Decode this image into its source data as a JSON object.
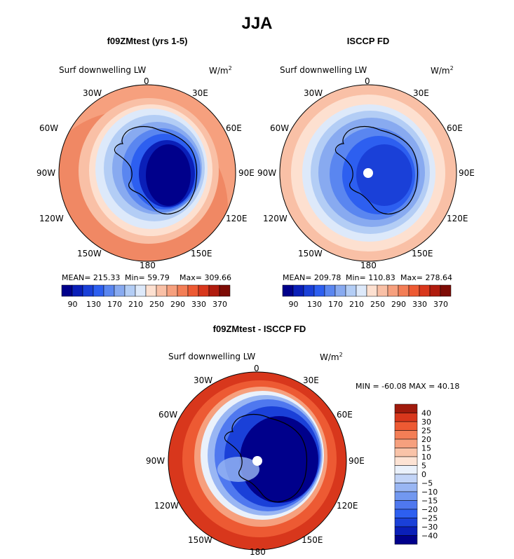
{
  "main_title": "JJA",
  "panel1": {
    "title": "f09ZMtest (yrs 1-5)",
    "variable": "Surf downwelling LW",
    "units": "W/m",
    "units_sup": "2",
    "stats": {
      "mean": "MEAN= 215.33",
      "min": "Min=  59.79",
      "max": "Max= 309.66"
    },
    "colorbar_labels": [
      "90",
      "130",
      "170",
      "210",
      "250",
      "290",
      "330",
      "370"
    ]
  },
  "panel2": {
    "title": "ISCCP FD",
    "variable": "Surf downwelling LW",
    "units": "W/m",
    "units_sup": "2",
    "stats": {
      "mean": "MEAN= 209.78",
      "min": "Min= 110.83",
      "max": "Max= 278.64"
    },
    "colorbar_labels": [
      "90",
      "130",
      "170",
      "210",
      "250",
      "290",
      "330",
      "370"
    ]
  },
  "panel3": {
    "title": "f09ZMtest - ISCCP FD",
    "variable": "Surf downwelling LW",
    "units": "W/m",
    "units_sup": "2",
    "minmax": "MIN = -60.08 MAX =  40.18",
    "colorbar_labels": [
      "40",
      "30",
      "25",
      "20",
      "15",
      "10",
      "5",
      "0",
      "−5",
      "−10",
      "−15",
      "−20",
      "−25",
      "−30",
      "−40"
    ]
  },
  "longitude_labels": {
    "top": "0",
    "bottom": "180",
    "30W": "30W",
    "30E": "30E",
    "60W": "60W",
    "60E": "60E",
    "90W": "90W",
    "90E": "90E",
    "120W": "120W",
    "120E": "120E",
    "150W": "150W",
    "150E": "150E"
  },
  "colors": {
    "seq": [
      "#00008b",
      "#0a1fb8",
      "#1a40d8",
      "#2d5ff0",
      "#5a86f0",
      "#88aaf0",
      "#b3cdf5",
      "#dde9fa",
      "#fde0d0",
      "#f9c0a6",
      "#f6a07e",
      "#f37e56",
      "#ed5a33",
      "#d8371c",
      "#b01c0e",
      "#7d0b05"
    ],
    "diff": [
      "#00008b",
      "#0a1fb8",
      "#1a40d8",
      "#2d5ff0",
      "#4f78ef",
      "#7298f0",
      "#99b6f3",
      "#c2d4f7",
      "#eaf1fb",
      "#fde3d4",
      "#f9c3a8",
      "#f6a07e",
      "#f37e56",
      "#ed5a33",
      "#d8371c",
      "#a01a0c"
    ]
  }
}
